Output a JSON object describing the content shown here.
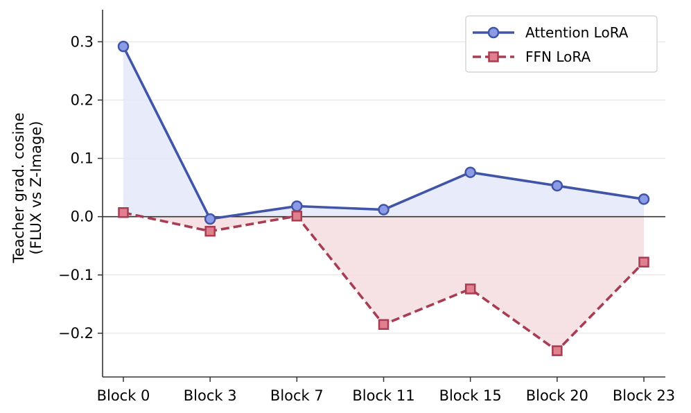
{
  "chart_data": {
    "type": "line",
    "categories": [
      "Block 0",
      "Block 3",
      "Block 7",
      "Block 11",
      "Block 15",
      "Block 20",
      "Block 23"
    ],
    "series": [
      {
        "name": "Attention LoRA",
        "values": [
          0.292,
          -0.004,
          0.018,
          0.012,
          0.076,
          0.053,
          0.03
        ],
        "line_color": "#4055a8",
        "marker_fill": "#8b9be6",
        "fill_color": "#e4e8f8",
        "marker": "circle",
        "line_style": "solid"
      },
      {
        "name": "FFN LoRA",
        "values": [
          0.007,
          -0.025,
          0.001,
          -0.185,
          -0.124,
          -0.23,
          -0.078
        ],
        "line_color": "#a83c52",
        "marker_fill": "#e07f8e",
        "fill_color": "#f4dde1",
        "marker": "square",
        "line_style": "dashed"
      }
    ],
    "ylabel_line1": "Teacher grad. cosine",
    "ylabel_line2": "(FLUX vs Z-Image)",
    "ylim": [
      -0.275,
      0.355
    ],
    "yticks": [
      0.3,
      0.2,
      0.1,
      0.0,
      -0.1,
      -0.2
    ],
    "ytick_labels": [
      "0.3",
      "0.2",
      "0.1",
      "0.0",
      "−0.1",
      "−0.2"
    ],
    "grid": "horizontal",
    "zero_line": true,
    "legend_position": "top-right"
  }
}
